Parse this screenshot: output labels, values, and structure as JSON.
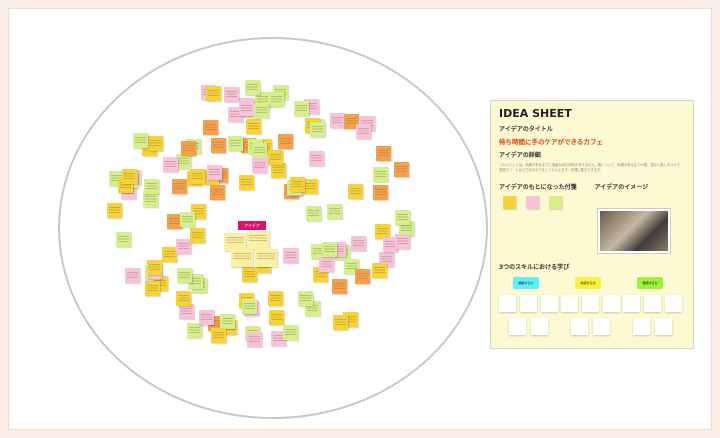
{
  "palette": {
    "yellow": "#f7d337",
    "pink": "#f8c3da",
    "green": "#d5f08a",
    "orange": "#f7a04a",
    "cream": "#fbf0a2"
  },
  "notes": "yogpyggpoyyopgpgyypgoygpgpgyoyggpyopgyypgypgogpyogypgyygpgoyypgpgyoygpygopgyygpgpoygypgpgyogpyygpgyopgyyppgoygygpgoyypgypgopgyg",
  "center_tag": "アイデア",
  "sheet": {
    "title": "IDEA SHEET",
    "idea_title_label": "アイデアのタイトル",
    "idea_title": "待ち時間に手のケアができるカフェ",
    "detail_label": "アイデアの詳細",
    "detail_text": "このカフェでは、料理が来るまでに退屈な待ち時間がありません。席について、料理が来るまでの間、温かい蒸しタオルで、保湿クリームなどで手のケアをしてもらえます。料理に集中できます。",
    "source_label": "アイデアのもとになった付箋",
    "image_label": "アイデアのイメージ",
    "skills_label": "3つのスキルにおける学び",
    "skills": [
      {
        "label": "観察する力",
        "color": "#5ff0f5"
      },
      {
        "label": "共感する力",
        "color": "#f7f23a"
      },
      {
        "label": "発想する力",
        "color": "#9ef03a"
      }
    ]
  }
}
